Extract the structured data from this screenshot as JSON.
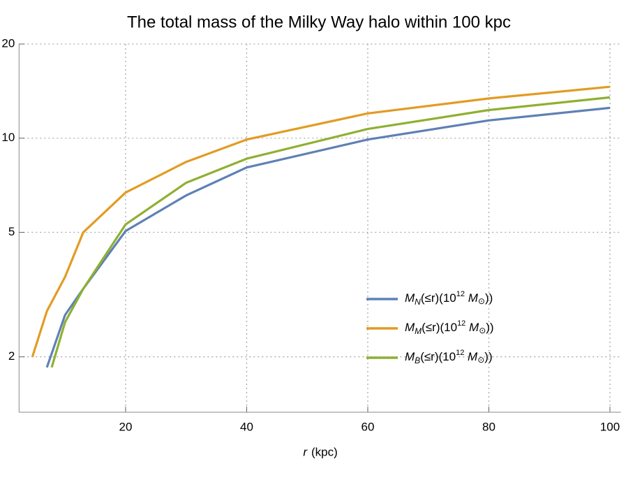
{
  "chart_data": {
    "type": "line",
    "title": "The total mass of the Milky Way halo within 100 kpc",
    "x_label": {
      "symbol": "r",
      "unit": "(kpc)"
    },
    "series": [
      {
        "name": "MN(≤r)(1012 M⊙))",
        "color": "#5e81b5",
        "x": [
          7,
          10,
          13,
          20,
          30,
          40,
          60,
          80,
          100
        ],
        "values": [
          1.85,
          2.72,
          3.3,
          5.05,
          6.56,
          8.06,
          9.9,
          11.4,
          12.5
        ]
      },
      {
        "name": "MM(≤r)(1012 M⊙))",
        "color": "#e19c24",
        "x": [
          4.6,
          7,
          10,
          13,
          20,
          30,
          40,
          60,
          80,
          100
        ],
        "values": [
          2.0,
          2.8,
          3.6,
          5.0,
          6.7,
          8.4,
          9.9,
          12.0,
          13.4,
          14.6
        ]
      },
      {
        "name": "MB(≤r)(1012 M⊙))",
        "color": "#8fb032",
        "x": [
          7.8,
          10,
          13,
          20,
          30,
          40,
          60,
          80,
          100
        ],
        "values": [
          1.85,
          2.58,
          3.3,
          5.3,
          7.2,
          8.6,
          10.7,
          12.3,
          13.5
        ]
      }
    ],
    "xlim": [
      2.4,
      101.8
    ],
    "xticks": [
      20,
      40,
      60,
      80,
      100
    ],
    "ylim": [
      1.33,
      20
    ],
    "yticks": [
      2,
      5,
      10,
      20
    ],
    "log_y": true,
    "grid": true,
    "legend": "lower right"
  }
}
